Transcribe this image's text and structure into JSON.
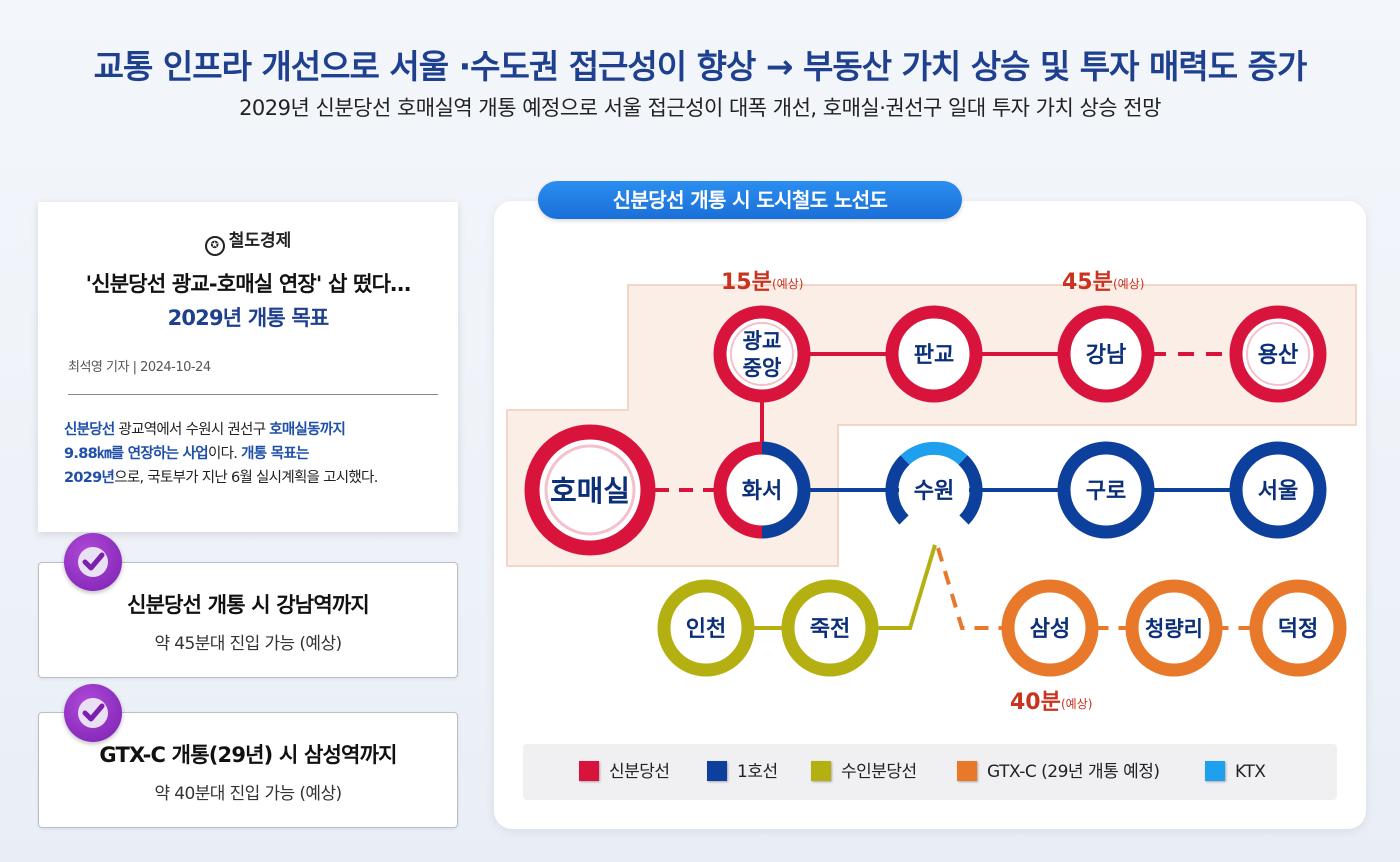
{
  "headline": "교통 인프라 개선으로 서울 ·수도권 접근성이 향상 → 부동산 가치 상승 및 투자 매력도 증가",
  "subheadline": "2029년 신분당선 호매실역 개통 예정으로 서울 접근성이 대폭 개선, 호매실·권선구 일대 투자 가치 상승 전망",
  "news": {
    "logo": "철도경제",
    "title_line1": "'신분당선 광교-호매실 연장' 삽 떴다…",
    "title_line2": "2029년 개통 목표",
    "byline": "최석영 기자 | 2024-10-24",
    "body": {
      "p1_hl": "신분당선",
      "p2": " 광교역에서 수원시 권선구 ",
      "p3_hl": "호매실동까지",
      "p4_hl": "9.88㎞를 연장하는 사업",
      "p5": "이다. ",
      "p6_hl": "개통 목표는",
      "p7_hl": "2029년",
      "p8": "으로, 국토부가 지난 6월 실시계획을 고시했다."
    }
  },
  "cards": [
    {
      "title": "신분당선 개통 시 강남역까지",
      "subtitle": "약 45분대 진입 가능 (예상)"
    },
    {
      "title": "GTX-C 개통(29년) 시 삼성역까지",
      "subtitle": "약 40분대 진입 가능 (예상)"
    }
  ],
  "map": {
    "title": "신분당선 개통 시 도시철도 노선도",
    "time_labels": {
      "t15": "15분",
      "t15_note": "(예상)",
      "t45": "45분",
      "t45_note": "(예상)",
      "t40": "40분",
      "t40_note": "(예상)"
    },
    "stations": {
      "gwanggyo_l1": "광교",
      "gwanggyo_l2": "중앙",
      "pangyo": "판교",
      "gangnam": "강남",
      "yongsan": "용산",
      "homaesil": "호매실",
      "hwaseo": "화서",
      "suwon": "수원",
      "guro": "구로",
      "seoul": "서울",
      "incheon": "인천",
      "jukjeon": "죽전",
      "samseong": "삼성",
      "cheongnyangni": "청량리",
      "deokjeong": "덕정"
    },
    "colors": {
      "sinbundang": "#d8143c",
      "line1": "#0d3f9c",
      "suin": "#b5b012",
      "gtxc": "#e8782a",
      "ktx": "#1fa0ee"
    }
  },
  "legend": [
    {
      "label": "신분당선",
      "color": "#d8143c"
    },
    {
      "label": "1호선",
      "color": "#0d3f9c"
    },
    {
      "label": "수인분당선",
      "color": "#b5b012"
    },
    {
      "label": "GTX-C (29년 개통 예정)",
      "color": "#e8782a"
    },
    {
      "label": "KTX",
      "color": "#1fa0ee"
    }
  ]
}
